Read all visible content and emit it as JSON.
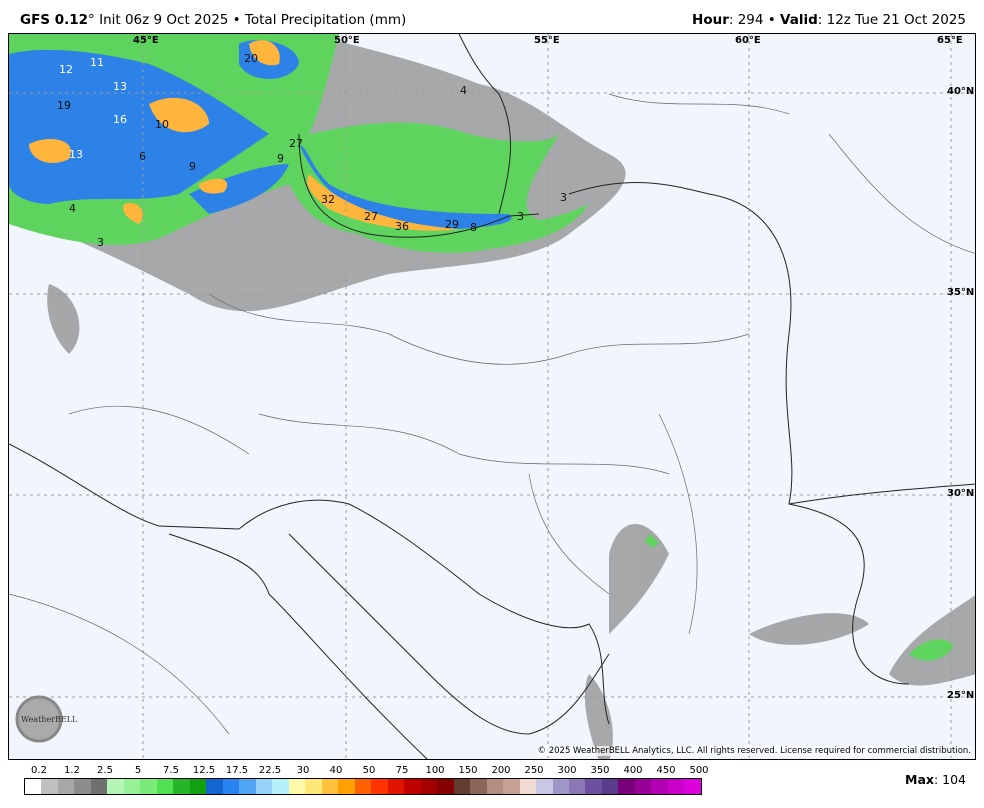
{
  "header": {
    "model": "GFS 0.12",
    "deg": "°",
    "init": " Init 06z 9 Oct 2025 • Total Precipitation (mm)",
    "hour_label": "Hour",
    "hour": ": 294 • ",
    "valid_label": "Valid",
    "valid": ": 12z Tue 21 Oct 2025"
  },
  "map": {
    "lon_labels": [
      "45°E",
      "50°E",
      "55°E",
      "60°E",
      "65°E"
    ],
    "lat_labels": [
      "40°N",
      "35°N",
      "30°N",
      "25°N"
    ],
    "values": [
      "12",
      "11",
      "13",
      "19",
      "16",
      "10",
      "13",
      "6",
      "9",
      "9",
      "27",
      "32",
      "27",
      "36",
      "29",
      "8",
      "3",
      "3",
      "4",
      "3",
      "20",
      "4"
    ],
    "copyright": "© 2025 WeatherBELL Analytics, LLC. All rights reserved. License required for commercial distribution.",
    "logo_text": "WeatherBELL"
  },
  "colorbar": {
    "labels": [
      "0.2",
      "1.2",
      "2.5",
      "5",
      "7.5",
      "12.5",
      "17.5",
      "22.5",
      "30",
      "40",
      "50",
      "75",
      "100",
      "150",
      "200",
      "250",
      "300",
      "350",
      "400",
      "450",
      "500"
    ],
    "colors": [
      "#ffffff",
      "#c0c0c0",
      "#a8a8a8",
      "#8c8c8c",
      "#707070",
      "#b4f5b4",
      "#96f096",
      "#78eb78",
      "#50e050",
      "#28b428",
      "#10a010",
      "#1464d2",
      "#2882f0",
      "#50a5f5",
      "#96d2fa",
      "#b4f0fa",
      "#fffaaa",
      "#ffe878",
      "#ffc03c",
      "#ffa000",
      "#ff6000",
      "#ff3200",
      "#e11400",
      "#c00000",
      "#a50000",
      "#870000",
      "#643c32",
      "#8c645a",
      "#b48c82",
      "#c8a096",
      "#f0dcd2",
      "#c8c8e6",
      "#a096c8",
      "#8c78b4",
      "#6e50a0",
      "#5a3c8c",
      "#780078",
      "#960096",
      "#b400b4",
      "#c800c8",
      "#dc00dc"
    ]
  },
  "max_label": "Max",
  "max_value": ": 104"
}
